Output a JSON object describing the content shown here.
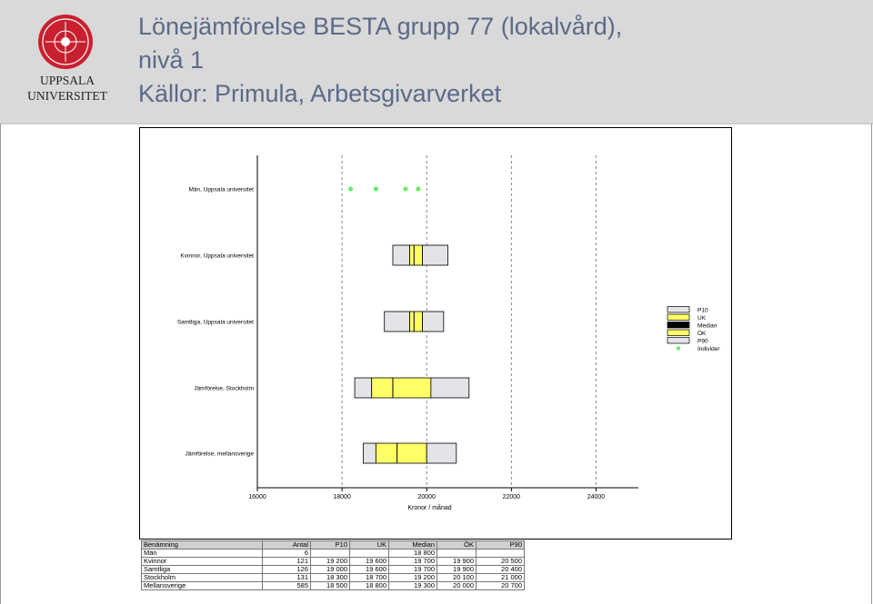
{
  "header": {
    "title_line1": "Lönejämförelse BESTA grupp 77 (lokalvård),",
    "title_line2": "nivå 1",
    "title_line3": "Källor: Primula, Arbetsgivarverket",
    "logo_text_1": "UPPSALA",
    "logo_text_2": "UNIVERSITET"
  },
  "colors": {
    "header_bg": "#d9d9d9",
    "title": "#5b6a88",
    "logo_red": "#c8202f",
    "box_grey": "#e3e3e8",
    "box_yellow": "#ffff66",
    "individual": "#66ee66"
  },
  "chart_data": {
    "type": "box",
    "xlabel": "Kronor / månad",
    "xlim": [
      16000,
      25000
    ],
    "xticks": [
      16000,
      18000,
      20000,
      22000,
      24000
    ],
    "tick_labels": [
      "16000",
      "18000",
      "20000",
      "22000",
      "24000"
    ],
    "grid": "vertical-dashed",
    "legend_position": "right",
    "legend": [
      "P10",
      "UK",
      "Median",
      "ÖK",
      "P90",
      "Individer"
    ],
    "categories": [
      "Män, Uppsala universitet",
      "Kvinnor, Uppsala universitet",
      "Samtliga, Uppsala universitet",
      "Jämförelse, Stockholm",
      "Jämförelse, mellansverige"
    ],
    "individuals": [
      18200,
      18800,
      19500,
      19800
    ],
    "boxes": [
      {
        "category": "Kvinnor, Uppsala universitet",
        "p10": 19200,
        "uk": 19600,
        "median": 19700,
        "ok": 19900,
        "p90": 20500
      },
      {
        "category": "Samtliga, Uppsala universitet",
        "p10": 19000,
        "uk": 19600,
        "median": 19700,
        "ok": 19900,
        "p90": 20400
      },
      {
        "category": "Jämförelse, Stockholm",
        "p10": 18300,
        "uk": 18700,
        "median": 19200,
        "ok": 20100,
        "p90": 21000
      },
      {
        "category": "Jämförelse, mellansverige",
        "p10": 18500,
        "uk": 18800,
        "median": 19300,
        "ok": 20000,
        "p90": 20700
      }
    ]
  },
  "table": {
    "headers": [
      "Benämning",
      "Antal",
      "P10",
      "UK",
      "Median",
      "ÖK",
      "P90"
    ],
    "rows": [
      [
        "Män",
        "6",
        "",
        "",
        "18 800",
        "",
        ""
      ],
      [
        "Kvinnor",
        "121",
        "19 200",
        "19 600",
        "19 700",
        "19 900",
        "20 500"
      ],
      [
        "Samtliga",
        "126",
        "19 000",
        "19 600",
        "19 700",
        "19 900",
        "20 400"
      ],
      [
        "Stockholm",
        "131",
        "18 300",
        "18 700",
        "19 200",
        "20 100",
        "21 000"
      ],
      [
        "Mellansverige",
        "585",
        "18 500",
        "18 800",
        "19 300",
        "20 000",
        "20 700"
      ]
    ]
  }
}
